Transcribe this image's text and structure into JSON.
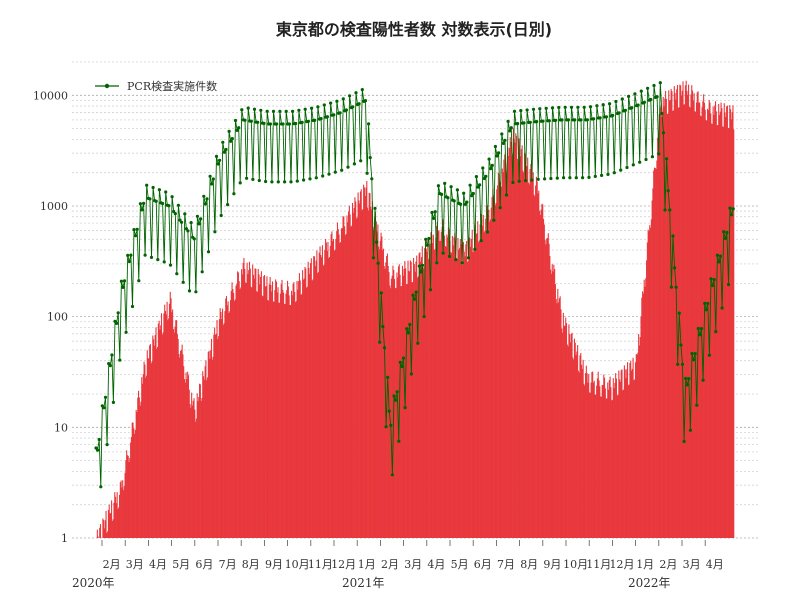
{
  "chart_data": {
    "type": "bar",
    "title": "東京都の検査陽性者数 対数表示(日別)",
    "y_scale": "log",
    "ylim": [
      1,
      20000
    ],
    "y_ticks": [
      {
        "value": 1,
        "label": "1"
      },
      {
        "value": 10,
        "label": "10"
      },
      {
        "value": 100,
        "label": "100"
      },
      {
        "value": 1000,
        "label": "1000"
      },
      {
        "value": 10000,
        "label": "10000"
      }
    ],
    "x_month_labels": [
      "2月",
      "3月",
      "4月",
      "5月",
      "6月",
      "7月",
      "8月",
      "9月",
      "10月",
      "11月",
      "12月",
      "1月",
      "2月",
      "3月",
      "4月",
      "5月",
      "6月",
      "7月",
      "8月",
      "9月",
      "10月",
      "11月",
      "12月",
      "1月",
      "2月",
      "3月",
      "4月"
    ],
    "x_year_labels": [
      "2020年",
      "2021年",
      "2022年"
    ],
    "grid": "horizontal-dotted",
    "legend_position": "top-left",
    "colors": {
      "positives": "#e8383d",
      "pcr": "#006400",
      "grid": "#b8b8b8"
    },
    "series": [
      {
        "name": "",
        "kind": "bar",
        "values_by_month": [
          1,
          3,
          40,
          150,
          15,
          100,
          300,
          200,
          180,
          350,
          700,
          1500,
          250,
          300,
          700,
          400,
          1000,
          4500,
          1500,
          100,
          30,
          25,
          40,
          9000,
          12000,
          8000,
          7000
        ]
      },
      {
        "name": "PCR検査実施件数",
        "kind": "line",
        "values_by_month": [
          5,
          150,
          1200,
          1000,
          500,
          2500,
          6000,
          5500,
          5500,
          6000,
          7000,
          9000,
          10,
          150,
          1300,
          1000,
          2000,
          5500,
          5800,
          6000,
          6000,
          6500,
          8000,
          10000,
          20,
          150,
          1000
        ]
      }
    ]
  }
}
